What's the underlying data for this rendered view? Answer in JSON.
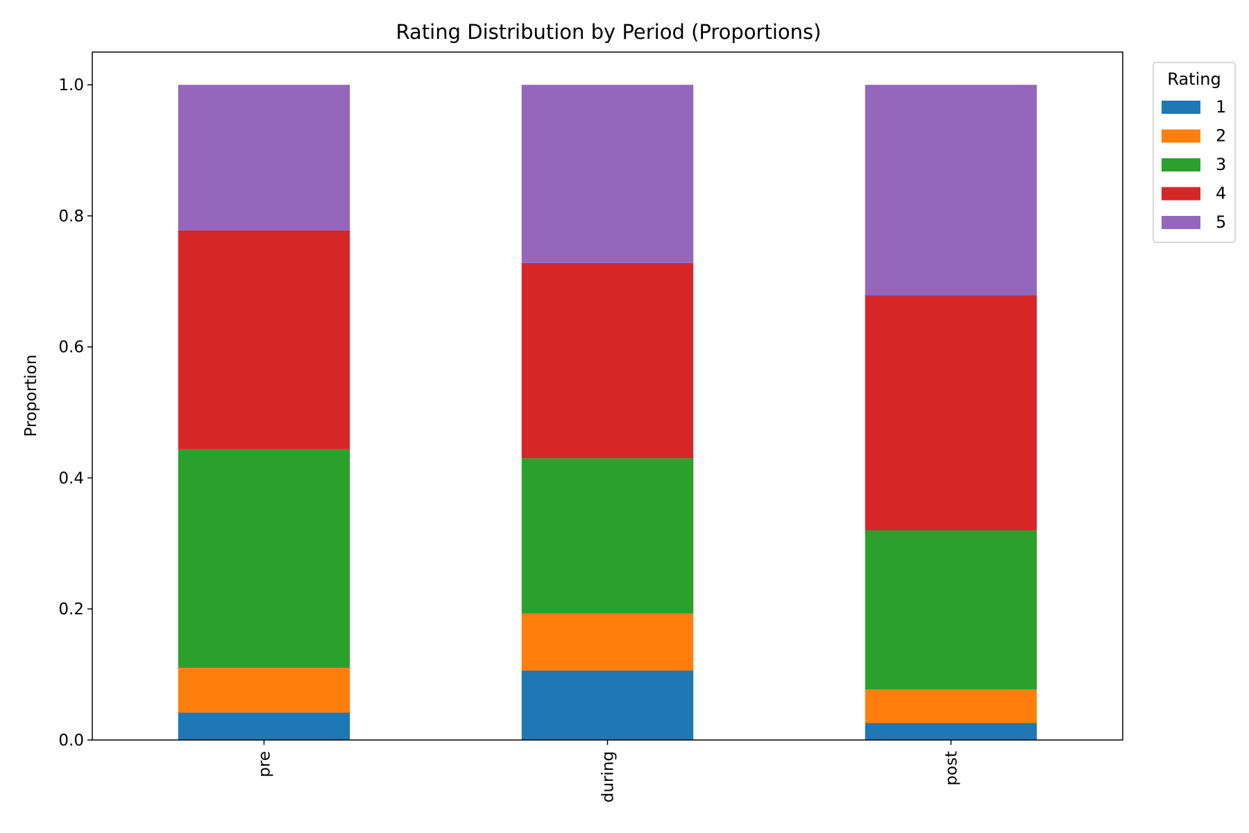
{
  "chart_data": {
    "type": "bar",
    "stacked": true,
    "title": "Rating Distribution by Period (Proportions)",
    "xlabel": "",
    "ylabel": "Proportion",
    "ylim": [
      0,
      1.05
    ],
    "yticks": [
      "0.0",
      "0.2",
      "0.4",
      "0.6",
      "0.8",
      "1.0"
    ],
    "categories": [
      "pre",
      "during",
      "post"
    ],
    "legend": {
      "title": "Rating",
      "placement": "outside-top-right"
    },
    "grid": false,
    "series": [
      {
        "name": "1",
        "color": "#1f77b4",
        "values": [
          0.042,
          0.106,
          0.026
        ]
      },
      {
        "name": "2",
        "color": "#ff7f0e",
        "values": [
          0.068,
          0.087,
          0.051
        ]
      },
      {
        "name": "3",
        "color": "#2ca02c",
        "values": [
          0.334,
          0.237,
          0.243
        ]
      },
      {
        "name": "4",
        "color": "#d62728",
        "values": [
          0.334,
          0.298,
          0.359
        ]
      },
      {
        "name": "5",
        "color": "#9467bd",
        "values": [
          0.222,
          0.272,
          0.321
        ]
      }
    ]
  }
}
